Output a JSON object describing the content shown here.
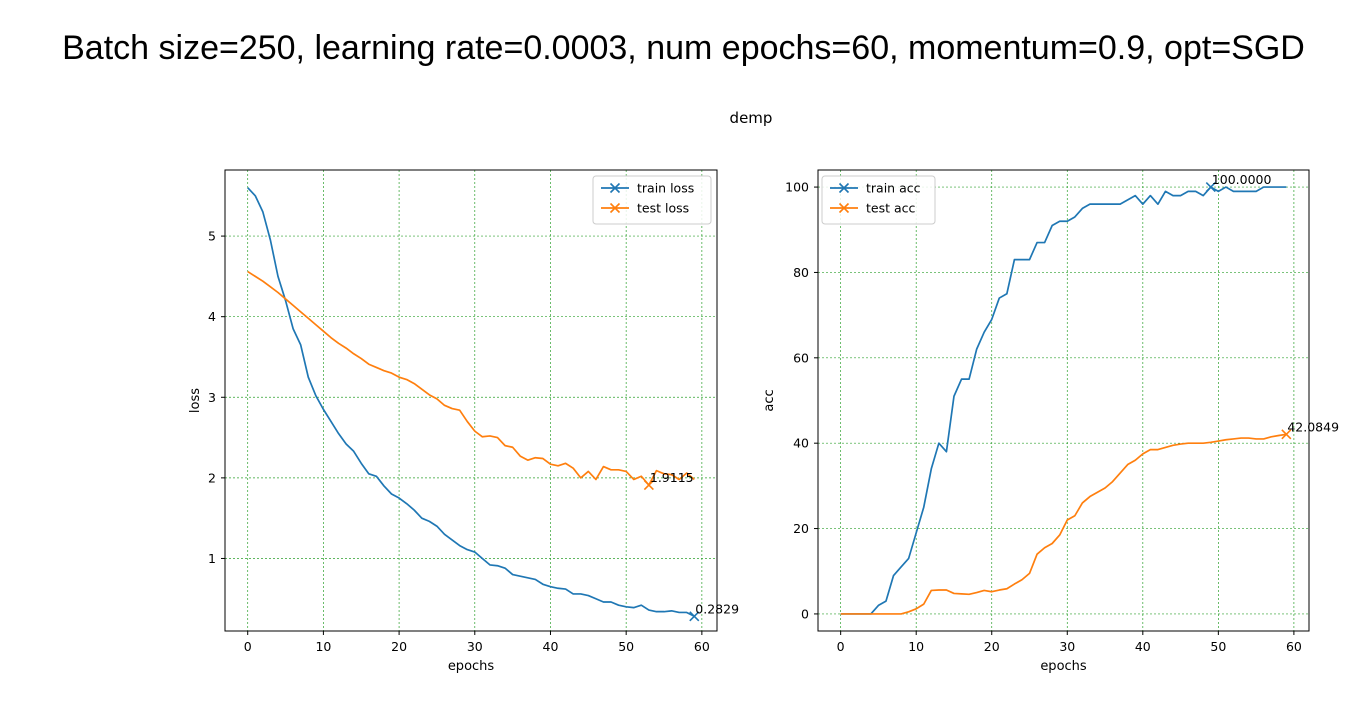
{
  "page_title": "Batch size=250, learning rate=0.0003, num epochs=60, momentum=0.9, opt=SGD",
  "suptitle": "demp",
  "chart_data": [
    {
      "type": "line",
      "xlabel": "epochs",
      "ylabel": "loss",
      "xlim": [
        -3,
        62
      ],
      "ylim": [
        0.1,
        5.82
      ],
      "xticks": [
        0,
        10,
        20,
        30,
        40,
        50,
        60
      ],
      "yticks": [
        1,
        2,
        3,
        4,
        5
      ],
      "grid": true,
      "legend_position": "top-right",
      "series": [
        {
          "name": "train loss",
          "color": "#1f77b4",
          "values": [
            5.6,
            5.5,
            5.3,
            4.95,
            4.5,
            4.2,
            3.85,
            3.65,
            3.25,
            3.02,
            2.85,
            2.7,
            2.55,
            2.42,
            2.33,
            2.18,
            2.05,
            2.02,
            1.9,
            1.8,
            1.75,
            1.68,
            1.6,
            1.5,
            1.46,
            1.4,
            1.3,
            1.23,
            1.16,
            1.11,
            1.08,
            1.0,
            0.92,
            0.91,
            0.88,
            0.8,
            0.78,
            0.76,
            0.74,
            0.68,
            0.65,
            0.63,
            0.62,
            0.56,
            0.56,
            0.54,
            0.5,
            0.46,
            0.46,
            0.42,
            0.4,
            0.39,
            0.42,
            0.36,
            0.34,
            0.34,
            0.35,
            0.33,
            0.33,
            0.2829
          ],
          "annotation": {
            "index": 59,
            "text": "0.2829"
          }
        },
        {
          "name": "test loss",
          "color": "#ff7f0e",
          "values": [
            4.56,
            4.5,
            4.44,
            4.37,
            4.3,
            4.22,
            4.14,
            4.06,
            3.98,
            3.9,
            3.82,
            3.74,
            3.67,
            3.61,
            3.54,
            3.48,
            3.41,
            3.37,
            3.33,
            3.3,
            3.25,
            3.22,
            3.17,
            3.1,
            3.03,
            2.98,
            2.9,
            2.86,
            2.84,
            2.7,
            2.58,
            2.51,
            2.52,
            2.5,
            2.4,
            2.38,
            2.27,
            2.22,
            2.25,
            2.24,
            2.17,
            2.15,
            2.18,
            2.12,
            2.0,
            2.08,
            1.98,
            2.14,
            2.1,
            2.1,
            2.08,
            1.98,
            2.02,
            1.9115,
            2.09,
            2.05,
            2.04,
            1.98,
            2.06,
            1.98
          ],
          "annotation": {
            "index": 53,
            "text": "1.9115"
          }
        }
      ]
    },
    {
      "type": "line",
      "xlabel": "epochs",
      "ylabel": "acc",
      "xlim": [
        -3,
        62
      ],
      "ylim": [
        -4,
        104
      ],
      "xticks": [
        0,
        10,
        20,
        30,
        40,
        50,
        60
      ],
      "yticks": [
        0,
        20,
        40,
        60,
        80,
        100
      ],
      "grid": true,
      "legend_position": "top-left",
      "series": [
        {
          "name": "train acc",
          "color": "#1f77b4",
          "values": [
            0,
            0,
            0,
            0,
            0,
            2,
            3,
            9,
            11,
            13,
            19,
            25,
            34,
            40,
            38,
            51,
            55,
            55,
            62,
            66,
            69,
            74,
            75,
            83,
            83,
            83,
            87,
            87,
            91,
            92,
            92,
            93,
            95,
            96,
            96,
            96,
            96,
            96,
            97,
            98,
            96,
            98,
            96,
            99,
            98,
            98,
            99,
            99,
            98,
            100,
            99,
            100,
            99,
            99,
            99,
            99,
            100,
            100,
            100,
            100
          ],
          "annotation": {
            "index": 49,
            "text": "100.0000"
          }
        },
        {
          "name": "test acc",
          "color": "#ff7f0e",
          "values": [
            0,
            0,
            0,
            0,
            0,
            0,
            0,
            0,
            0,
            0.5,
            1.2,
            2.3,
            5.5,
            5.6,
            5.6,
            4.8,
            4.7,
            4.6,
            5.0,
            5.5,
            5.2,
            5.6,
            5.9,
            7.0,
            8.0,
            9.5,
            14.0,
            15.5,
            16.5,
            18.5,
            22.0,
            23.0,
            26.0,
            27.5,
            28.5,
            29.5,
            31.0,
            33.0,
            35.0,
            36.0,
            37.5,
            38.5,
            38.5,
            39.0,
            39.5,
            39.8,
            40.0,
            40.0,
            40.0,
            40.2,
            40.5,
            40.8,
            41.0,
            41.2,
            41.2,
            41.0,
            41.0,
            41.5,
            41.8,
            42.0849
          ],
          "annotation": {
            "index": 59,
            "text": "42.0849"
          }
        }
      ]
    }
  ]
}
